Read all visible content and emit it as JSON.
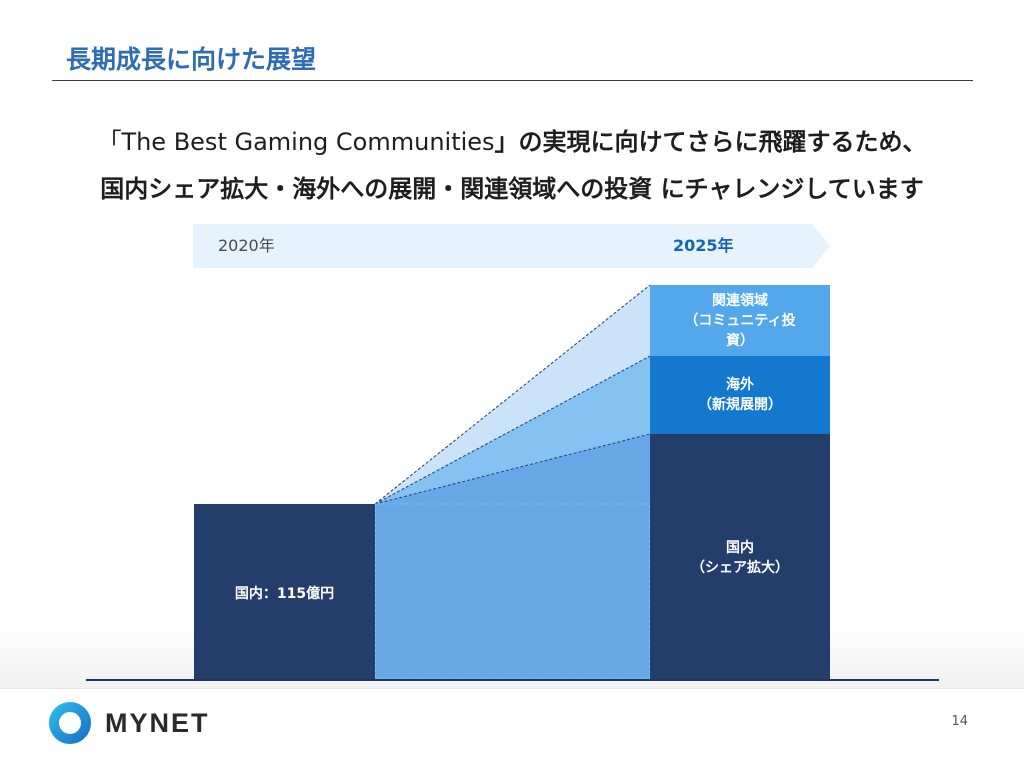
{
  "slide": {
    "title": "長期成長に向けた展望",
    "headline_line1_open": "「",
    "headline_line1_brand": "The Best Gaming Communities",
    "headline_line1_rest": "」の実現に向けてさらに飛躍するため、",
    "headline_line2_main": "国内シェア拡大・海外への展開・関連領域への投資",
    "headline_line2_tail": " にチャレンジしています",
    "page_number": "14"
  },
  "timeline": {
    "start": "2020年",
    "end": "2025年"
  },
  "segments": {
    "value_2020": "国内：115億円",
    "related_line1": "関連領域",
    "related_line2": "（コミュニティ投",
    "related_line3": "資）",
    "overseas_line1": "海外",
    "overseas_line2": "（新規展開）",
    "domestic_line1": "国内",
    "domestic_line2": "（シェア拡大）"
  },
  "colors": {
    "title": "#2e6db4",
    "navy": "#243e6b",
    "overseas": "#1478cf",
    "related": "#52a8ea",
    "growth_fill": "#66a9e6",
    "timeline_arrow": "#e6f3fd"
  },
  "logo": {
    "name": "MYNET"
  }
}
